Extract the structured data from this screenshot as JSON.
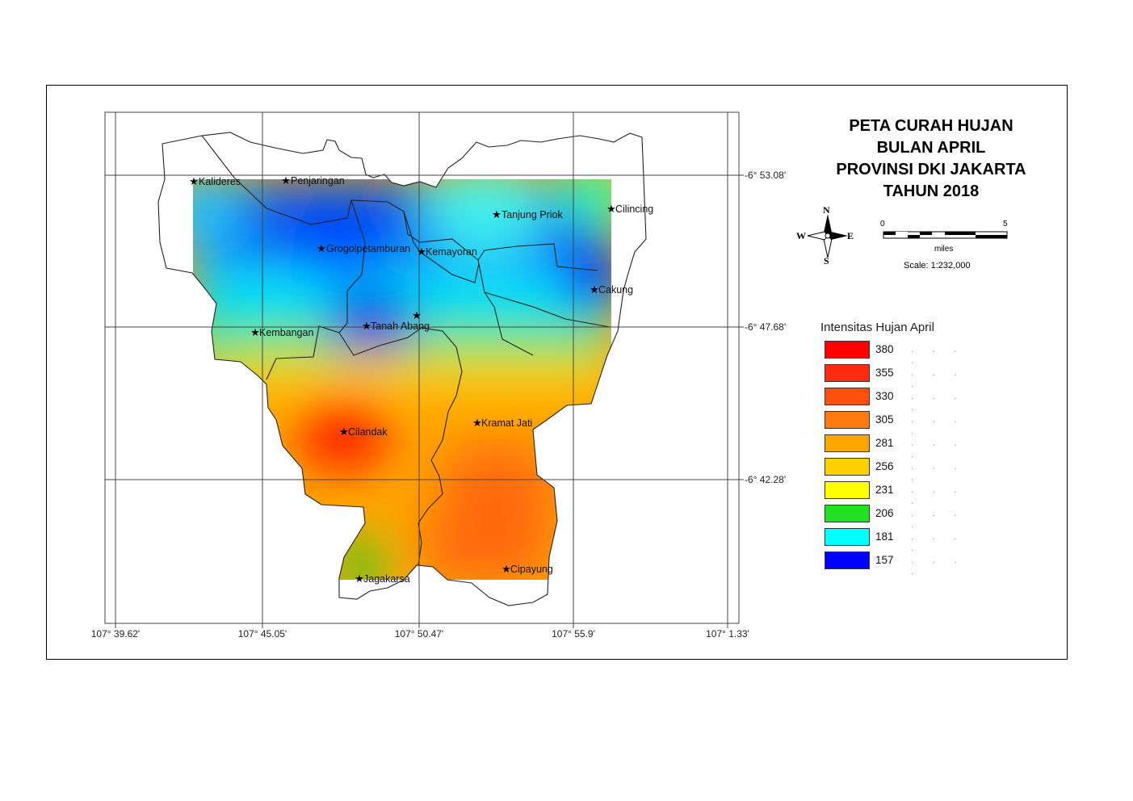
{
  "title": {
    "line1": "PETA CURAH HUJAN",
    "line2": "BULAN APRIL",
    "line3": "PROVINSI DKI JAKARTA",
    "line4": "TAHUN 2018"
  },
  "compass": {
    "n": "N",
    "s": "S",
    "e": "E",
    "w": "W"
  },
  "scale": {
    "start": "0",
    "end": "5",
    "unit": "miles",
    "ratio": "Scale: 1:232,000"
  },
  "longitude_labels": [
    "107° 39.62'",
    "107° 45.05'",
    "107° 50.47'",
    "107° 55.9'",
    "107° 1.33'"
  ],
  "latitude_labels": [
    "-6° 53.08'",
    "-6° 47.68'",
    "-6° 42.28'"
  ],
  "legend": {
    "title": "Intensitas Hujan April",
    "items": [
      {
        "label": "380",
        "color": "#ff0000"
      },
      {
        "label": "355",
        "color": "#ff2a10"
      },
      {
        "label": "330",
        "color": "#ff5010"
      },
      {
        "label": "305",
        "color": "#ff7a10"
      },
      {
        "label": "281",
        "color": "#ffa500"
      },
      {
        "label": "256",
        "color": "#ffd000"
      },
      {
        "label": "231",
        "color": "#ffff00"
      },
      {
        "label": "206",
        "color": "#22e022"
      },
      {
        "label": "181",
        "color": "#00ffff"
      },
      {
        "label": "157",
        "color": "#0000ff"
      }
    ]
  },
  "stations": [
    {
      "name": "Kalideres",
      "rain": 181
    },
    {
      "name": "Penjaringan",
      "rain": 157
    },
    {
      "name": "Tanjung Priok",
      "rain": 181
    },
    {
      "name": "Cilincing",
      "rain": 206
    },
    {
      "name": "Grogolpetamburan",
      "rain": 157
    },
    {
      "name": "Kemayoran",
      "rain": 157
    },
    {
      "name": "Cakung",
      "rain": 157
    },
    {
      "name": "Tanah Abang",
      "rain": 157
    },
    {
      "name": "Kembangan",
      "rain": 206
    },
    {
      "name": "Cilandak",
      "rain": 380
    },
    {
      "name": "Kramat Jati",
      "rain": 305
    },
    {
      "name": "Cipayung",
      "rain": 330
    },
    {
      "name": "Jagakarsa",
      "rain": 206
    },
    {
      "name": "",
      "rain": 157
    }
  ]
}
